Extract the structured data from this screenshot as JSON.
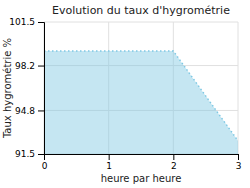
{
  "chart_data": {
    "type": "area",
    "title": "Evolution du taux d'hygrométrie",
    "xlabel": "heure par heure",
    "ylabel": "Taux hygrométrie %",
    "x": [
      0,
      2,
      3
    ],
    "values": [
      99.3,
      99.3,
      92.5
    ],
    "xlim": [
      0,
      3
    ],
    "ylim": [
      91.5,
      101.5
    ],
    "xticks": [
      0,
      1,
      2,
      3
    ],
    "yticks": [
      91.5,
      94.8,
      98.2,
      101.5
    ],
    "color": "#7ec8e3",
    "line_style": "dotted",
    "grid": true
  }
}
